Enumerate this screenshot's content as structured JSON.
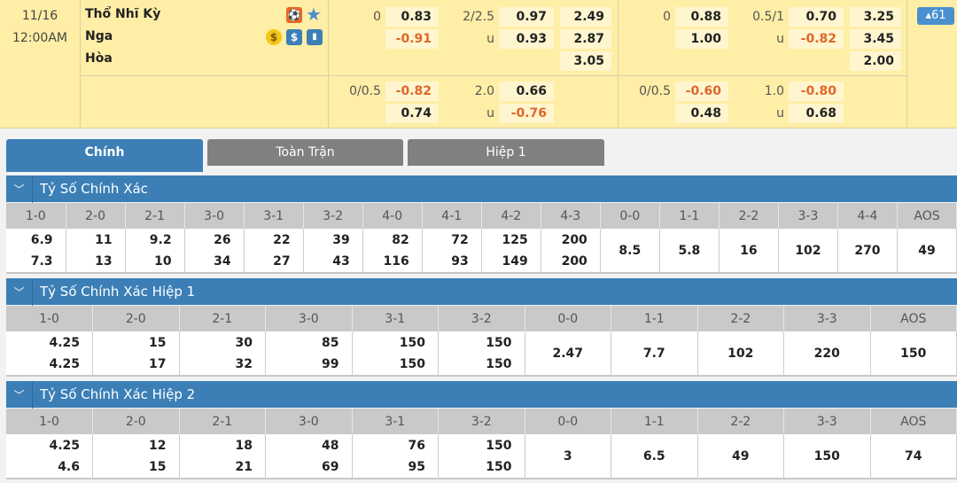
{
  "match": {
    "date": "11/16",
    "time": "12:00AM",
    "home": "Thổ Nhĩ Kỳ",
    "away": "Nga",
    "draw": "Hòa",
    "more_count": "61"
  },
  "colors": {
    "accent": "#3b7fb6",
    "negative": "#e0662a",
    "background": "#ffeea6"
  },
  "full_time": {
    "hdp_line": "0",
    "hdp_home": "0.83",
    "hdp_away": "-0.91",
    "ou_line": "2/2.5",
    "ou_over": "0.97",
    "ou_u": "u",
    "ou_under": "0.93",
    "x12_home": "2.49",
    "x12_away": "2.87",
    "x12_draw": "3.05",
    "alt_hdp_line": "0/0.5",
    "alt_hdp_home": "-0.82",
    "alt_hdp_away": "0.74",
    "alt_ou_line": "2.0",
    "alt_ou_over": "0.66",
    "alt_ou_u": "u",
    "alt_ou_under": "-0.76"
  },
  "first_half": {
    "hdp_line": "0",
    "hdp_home": "0.88",
    "hdp_away": "1.00",
    "ou_line": "0.5/1",
    "ou_over": "0.70",
    "ou_u": "u",
    "ou_under": "-0.82",
    "x12_home": "3.25",
    "x12_away": "3.45",
    "x12_draw": "2.00",
    "alt_hdp_line": "0/0.5",
    "alt_hdp_home": "-0.60",
    "alt_hdp_away": "0.48",
    "alt_ou_line": "1.0",
    "alt_ou_over": "-0.80",
    "alt_ou_u": "u",
    "alt_ou_under": "0.68"
  },
  "tabs": [
    {
      "label": "Chính",
      "active": true
    },
    {
      "label": "Toàn Trận"
    },
    {
      "label": "Hiệp 1"
    }
  ],
  "sections": [
    {
      "title": "Tỷ Số Chính Xác",
      "headers": [
        "1-0",
        "2-0",
        "2-1",
        "3-0",
        "3-1",
        "3-2",
        "4-0",
        "4-1",
        "4-2",
        "4-3",
        "0-0",
        "1-1",
        "2-2",
        "3-3",
        "4-4",
        "AOS"
      ],
      "row1": [
        "6.9",
        "11",
        "9.2",
        "26",
        "22",
        "39",
        "82",
        "72",
        "125",
        "200",
        "8.5",
        "5.8",
        "16",
        "102",
        "270",
        "49"
      ],
      "row2": [
        "7.3",
        "13",
        "10",
        "34",
        "27",
        "43",
        "116",
        "93",
        "149",
        "200"
      ]
    },
    {
      "title": "Tỷ Số Chính Xác Hiệp 1",
      "headers": [
        "1-0",
        "2-0",
        "2-1",
        "3-0",
        "3-1",
        "3-2",
        "0-0",
        "1-1",
        "2-2",
        "3-3",
        "AOS"
      ],
      "row1": [
        "4.25",
        "15",
        "30",
        "85",
        "150",
        "150",
        "2.47",
        "7.7",
        "102",
        "220",
        "150"
      ],
      "row2": [
        "4.25",
        "17",
        "32",
        "99",
        "150",
        "150"
      ]
    },
    {
      "title": "Tỷ Số Chính Xác Hiệp 2",
      "headers": [
        "1-0",
        "2-0",
        "2-1",
        "3-0",
        "3-1",
        "3-2",
        "0-0",
        "1-1",
        "2-2",
        "3-3",
        "AOS"
      ],
      "row1": [
        "4.25",
        "12",
        "18",
        "48",
        "76",
        "150",
        "3",
        "6.5",
        "49",
        "150",
        "74"
      ],
      "row2": [
        "4.6",
        "15",
        "21",
        "69",
        "95",
        "150"
      ]
    }
  ]
}
